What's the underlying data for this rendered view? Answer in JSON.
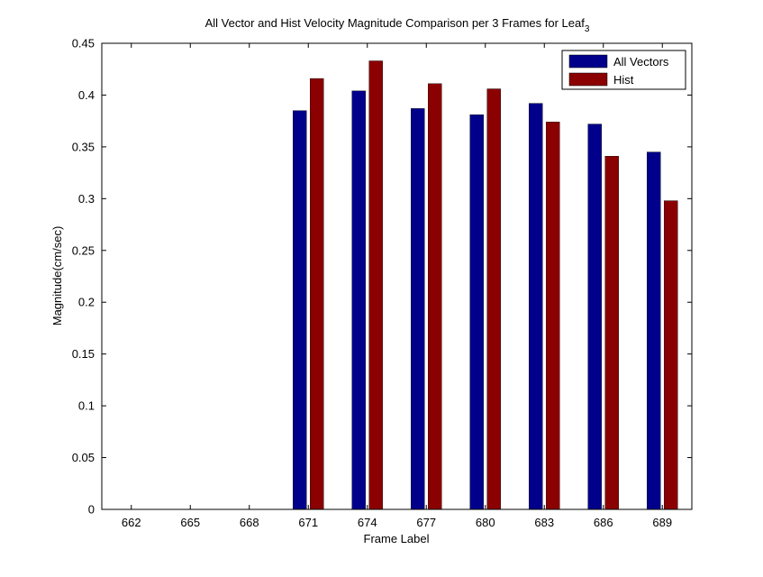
{
  "chart_data": {
    "type": "bar",
    "title": "All Vector and Hist Velocity Magnitude Comparison per 3 Frames for Leaf",
    "title_subscript": "3",
    "xlabel": "Frame Label",
    "ylabel": "Magnitude(cm/sec)",
    "categories": [
      "662",
      "665",
      "668",
      "671",
      "674",
      "677",
      "680",
      "683",
      "686",
      "689"
    ],
    "ylim": [
      0,
      0.45
    ],
    "yticks": [
      "0",
      "0.05",
      "0.1",
      "0.15",
      "0.2",
      "0.25",
      "0.3",
      "0.35",
      "0.4",
      "0.45"
    ],
    "grid": false,
    "legend_position": "top-right",
    "series": [
      {
        "name": "All Vectors",
        "color": "#00008b",
        "values": [
          null,
          null,
          null,
          0.385,
          0.404,
          0.387,
          0.381,
          0.392,
          0.372,
          0.345
        ]
      },
      {
        "name": "Hist",
        "color": "#8b0000",
        "values": [
          null,
          null,
          null,
          0.416,
          0.433,
          0.411,
          0.406,
          0.374,
          0.341,
          0.298
        ]
      }
    ]
  }
}
